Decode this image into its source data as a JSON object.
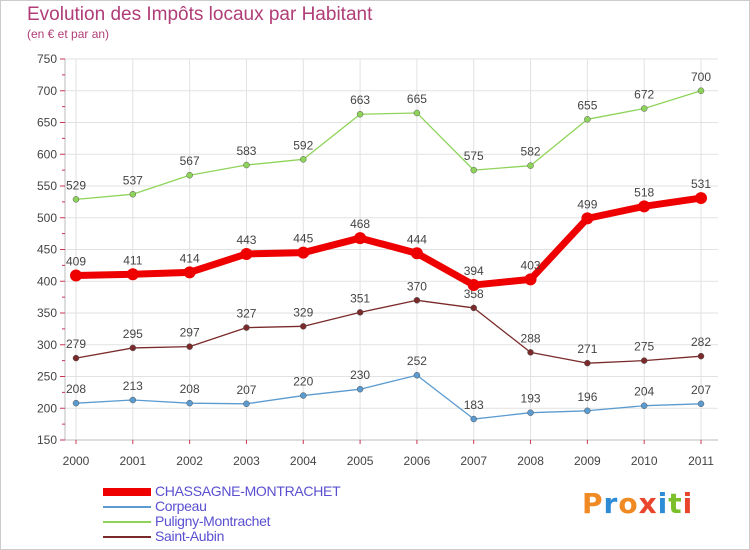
{
  "title": "Evolution des Impôts locaux par Habitant",
  "subtitle": "(en € et par an)",
  "logo": {
    "text": "Proxiti",
    "colors": [
      "#f08a24",
      "#2e8bd6",
      "#f08a24",
      "#e8452c",
      "#2e8bd6",
      "#7bbf2a",
      "#e8452c"
    ]
  },
  "chart_data": {
    "type": "line",
    "x": [
      "2000",
      "2001",
      "2002",
      "2003",
      "2004",
      "2005",
      "2006",
      "2007",
      "2008",
      "2009",
      "2010",
      "2011"
    ],
    "ylim": [
      150,
      750
    ],
    "yticks": [
      "150",
      "200",
      "250",
      "300",
      "350",
      "400",
      "450",
      "500",
      "550",
      "600",
      "650",
      "700",
      "750"
    ],
    "grid": true,
    "legend_position": "bottom-left",
    "series": [
      {
        "name": "CHASSAGNE-MONTRACHET",
        "color": "#ee0000",
        "values": [
          409,
          411,
          414,
          443,
          445,
          468,
          444,
          394,
          403,
          499,
          518,
          531
        ]
      },
      {
        "name": "Corpeau",
        "color": "#5b9bd0",
        "values": [
          208,
          213,
          208,
          207,
          220,
          230,
          252,
          183,
          193,
          196,
          204,
          207
        ]
      },
      {
        "name": "Puligny-Montrachet",
        "color": "#8fd45a",
        "values": [
          529,
          537,
          567,
          583,
          592,
          663,
          665,
          575,
          582,
          655,
          672,
          700
        ]
      },
      {
        "name": "Saint-Aubin",
        "color": "#7a2a2a",
        "values": [
          279,
          295,
          297,
          327,
          329,
          351,
          370,
          358,
          288,
          271,
          275,
          282
        ]
      }
    ]
  }
}
